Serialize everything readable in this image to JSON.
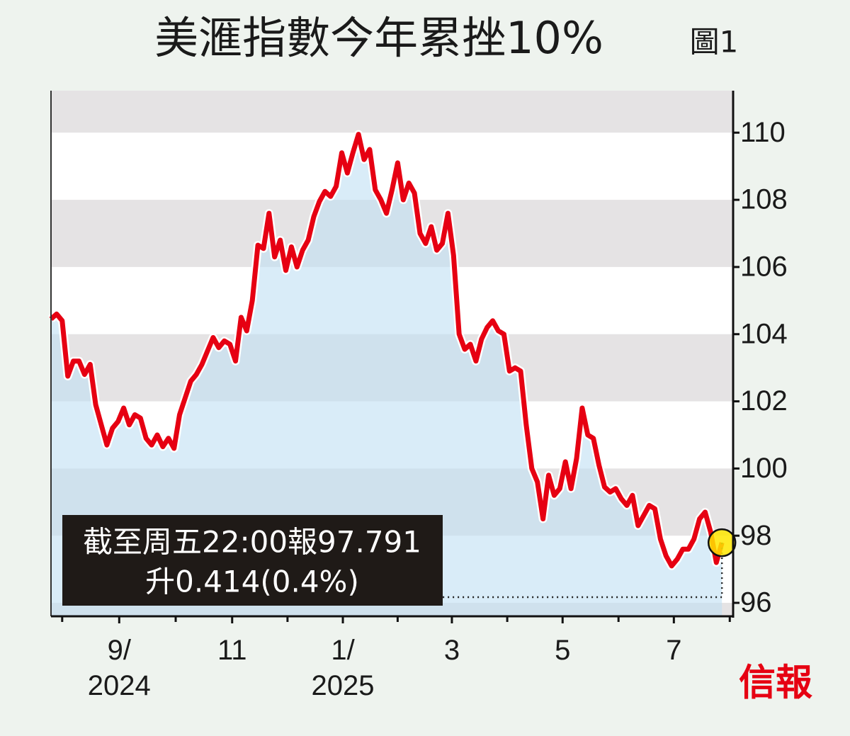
{
  "chart_data": {
    "type": "line",
    "title": "美滙指數今年累挫10%",
    "figure_label": "圖1",
    "values": [
      104.45,
      104.6,
      104.4,
      102.75,
      103.2,
      103.2,
      102.8,
      103.1,
      101.9,
      101.3,
      100.7,
      101.2,
      101.4,
      101.8,
      101.3,
      101.6,
      101.5,
      100.9,
      100.7,
      101.0,
      100.65,
      100.9,
      100.6,
      101.6,
      102.1,
      102.6,
      102.8,
      103.1,
      103.5,
      103.9,
      103.6,
      103.8,
      103.7,
      103.2,
      104.5,
      104.1,
      105.0,
      106.65,
      106.55,
      107.6,
      106.3,
      106.8,
      105.9,
      106.6,
      106.0,
      106.5,
      106.8,
      107.5,
      107.95,
      108.25,
      108.1,
      108.4,
      109.4,
      108.8,
      109.4,
      109.95,
      109.2,
      109.5,
      108.3,
      108.0,
      107.6,
      108.3,
      109.1,
      108.0,
      108.5,
      108.2,
      107.0,
      106.7,
      107.2,
      106.5,
      106.7,
      107.6,
      106.35,
      104.0,
      103.55,
      103.7,
      103.2,
      103.85,
      104.2,
      104.4,
      104.1,
      104.0,
      102.9,
      103.0,
      102.9,
      101.3,
      100.0,
      99.6,
      98.5,
      99.8,
      99.2,
      99.4,
      100.2,
      99.4,
      100.3,
      101.8,
      101.0,
      100.9,
      100.1,
      99.45,
      99.3,
      99.4,
      99.1,
      98.9,
      99.2,
      98.3,
      98.6,
      98.9,
      98.8,
      97.9,
      97.4,
      97.1,
      97.3,
      97.6,
      97.6,
      97.9,
      98.5,
      98.7,
      98.1,
      97.2,
      97.791
    ],
    "color": "#e60012",
    "area_color": "#bfe0f4",
    "band_color": "#e5e3e4",
    "grid": true,
    "ylim": [
      95.6,
      111.25
    ],
    "yticks": [
      96,
      98,
      100,
      102,
      104,
      106,
      108,
      110
    ],
    "xlim": [
      0,
      122
    ],
    "xticks": [
      {
        "value": 12.2,
        "label": "9/\n2024"
      },
      {
        "value": 32.4,
        "label": "11"
      },
      {
        "value": 52.2,
        "label": "1/\n2025"
      },
      {
        "value": 71.7,
        "label": "3"
      },
      {
        "value": 91.5,
        "label": "5"
      },
      {
        "value": 111.4,
        "label": "7"
      }
    ],
    "x_minor_ticks": [
      2,
      22.3,
      42.3,
      62,
      81.6,
      101.5,
      121.4
    ],
    "annotation": [
      "截至周五22:00報97.791",
      "升0.414(0.4%)"
    ],
    "source": "信報"
  }
}
